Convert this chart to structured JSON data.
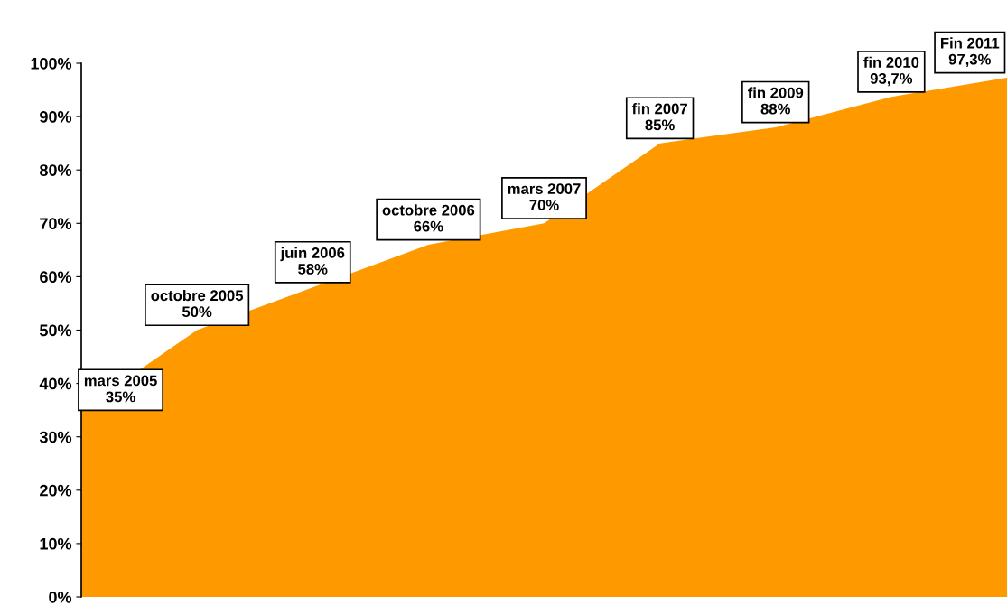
{
  "chart_data": {
    "type": "area",
    "categories": [
      "mars 2005",
      "octobre 2005",
      "juin 2006",
      "octobre 2006",
      "mars 2007",
      "fin 2007",
      "fin 2009",
      "fin 2010",
      "Fin 2011"
    ],
    "series": [
      {
        "color": "#ff9900",
        "values": [
          35,
          50,
          58,
          66,
          70,
          85,
          88,
          93.7,
          97.3
        ],
        "value_labels": [
          "35%",
          "50%",
          "58%",
          "66%",
          "70%",
          "85%",
          "88%",
          "93,7%",
          "97,3%"
        ]
      }
    ],
    "ylim": [
      0,
      100
    ],
    "yticks": [
      {
        "value": 0,
        "label": "0%"
      },
      {
        "value": 10,
        "label": "10%"
      },
      {
        "value": 20,
        "label": "20%"
      },
      {
        "value": 30,
        "label": "30%"
      },
      {
        "value": 40,
        "label": "40%"
      },
      {
        "value": 50,
        "label": "50%"
      },
      {
        "value": 60,
        "label": "60%"
      },
      {
        "value": 70,
        "label": "70%"
      },
      {
        "value": 80,
        "label": "80%"
      },
      {
        "value": 90,
        "label": "90%"
      },
      {
        "value": 100,
        "label": "100%"
      }
    ],
    "tick_labels": "y",
    "grid": false
  }
}
